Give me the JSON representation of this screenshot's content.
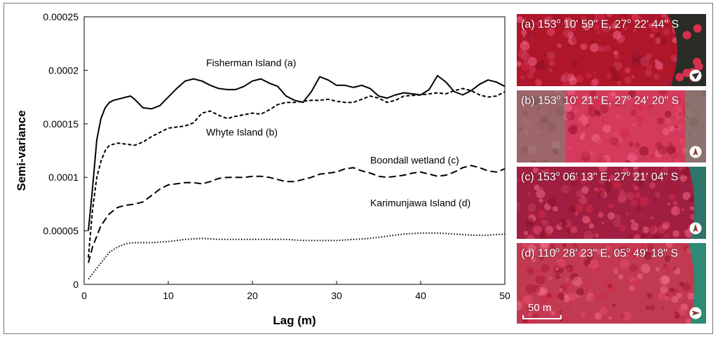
{
  "chart_data": {
    "type": "line",
    "xlabel": "Lag (m)",
    "ylabel": "Semi-variance",
    "xlim": [
      0,
      50
    ],
    "ylim": [
      0,
      0.00025
    ],
    "xticks": [
      "0",
      "10",
      "20",
      "30",
      "40",
      "50"
    ],
    "yticks": [
      "0",
      "0.00005",
      "0.0001",
      "0.00015",
      "0.0002",
      "0.00025"
    ],
    "series": [
      {
        "name": "Fisherman Island (a)",
        "style": "solid",
        "x": [
          0.5,
          1,
          1.5,
          2,
          2.5,
          3,
          3.5,
          4,
          5,
          5.5,
          6,
          7,
          8,
          9,
          10,
          11,
          12,
          13,
          14,
          15,
          16,
          17,
          18,
          19,
          20,
          21,
          22,
          23,
          24,
          25,
          26,
          27,
          28,
          29,
          30,
          31,
          32,
          33,
          34,
          35,
          36,
          37,
          38,
          39,
          40,
          41,
          42,
          43,
          44,
          45,
          46,
          47,
          48,
          49,
          50
        ],
        "y": [
          5e-05,
          9e-05,
          0.000135,
          0.000155,
          0.000165,
          0.00017,
          0.000172,
          0.000173,
          0.000175,
          0.000176,
          0.000173,
          0.000165,
          0.000164,
          0.000167,
          0.000175,
          0.000183,
          0.00019,
          0.000192,
          0.00019,
          0.000186,
          0.000183,
          0.000182,
          0.000182,
          0.000185,
          0.00019,
          0.000192,
          0.000188,
          0.000185,
          0.000176,
          0.000172,
          0.00017,
          0.00018,
          0.000194,
          0.000191,
          0.000186,
          0.000186,
          0.000184,
          0.000186,
          0.000183,
          0.000176,
          0.000174,
          0.000177,
          0.000179,
          0.000178,
          0.000177,
          0.000182,
          0.000195,
          0.000189,
          0.00018,
          0.000177,
          0.000181,
          0.000187,
          0.000191,
          0.000189,
          0.000185
        ]
      },
      {
        "name": "Whyte Island (b)",
        "style": "dashed",
        "x": [
          0.5,
          1,
          1.5,
          2,
          2.5,
          3,
          4,
          5,
          6,
          7,
          8,
          10,
          12,
          13,
          14,
          15,
          16,
          17,
          18,
          20,
          21,
          22,
          23,
          24,
          25,
          26,
          27,
          28,
          29,
          30,
          31,
          32,
          33,
          34,
          35,
          36,
          37,
          38,
          40,
          41,
          42,
          43,
          44,
          45,
          46,
          47,
          48,
          49,
          50
        ],
        "y": [
          2.5e-05,
          7e-05,
          0.0001,
          0.000115,
          0.000125,
          0.00013,
          0.000132,
          0.000131,
          0.00013,
          0.000133,
          0.000138,
          0.000146,
          0.000148,
          0.000151,
          0.00016,
          0.000162,
          0.000158,
          0.000155,
          0.000157,
          0.00016,
          0.000159,
          0.000163,
          0.000168,
          0.00017,
          0.00017,
          0.000171,
          0.000172,
          0.000172,
          0.000173,
          0.000171,
          0.00017,
          0.00017,
          0.000173,
          0.000176,
          0.000174,
          0.00017,
          0.000172,
          0.000176,
          0.000177,
          0.000178,
          0.000179,
          0.000178,
          0.000181,
          0.000183,
          0.000181,
          0.000177,
          0.000175,
          0.000176,
          0.00018
        ]
      },
      {
        "name": "Boondall wetland (c)",
        "style": "long-dashed",
        "x": [
          0.5,
          1,
          2,
          3,
          4,
          5,
          6,
          7,
          8,
          9,
          10,
          11,
          12,
          13,
          14,
          15,
          16,
          17,
          18,
          19,
          20,
          21,
          22,
          23,
          24,
          25,
          26,
          27,
          28,
          29,
          30,
          31,
          32,
          33,
          34,
          35,
          36,
          37,
          38,
          39,
          40,
          41,
          42,
          43,
          44,
          45,
          46,
          47,
          48,
          49,
          50
        ],
        "y": [
          2e-05,
          3.5e-05,
          5.5e-05,
          6.6e-05,
          7.2e-05,
          7.4e-05,
          7.5e-05,
          7.7e-05,
          8.3e-05,
          8.9e-05,
          9.3e-05,
          9.4e-05,
          9.5e-05,
          9.5e-05,
          9.4e-05,
          9.6e-05,
          9.9e-05,
          0.0001,
          0.0001,
          0.0001,
          0.000101,
          0.000101,
          0.0001,
          9.8e-05,
          9.6e-05,
          9.6e-05,
          9.8e-05,
          0.0001,
          0.000103,
          0.000104,
          0.000105,
          0.000108,
          0.000109,
          0.000106,
          0.000104,
          0.000101,
          0.0001,
          0.000101,
          0.000102,
          0.000104,
          0.000105,
          0.000103,
          0.000101,
          0.000102,
          0.000105,
          0.000109,
          0.000111,
          0.000109,
          0.000106,
          0.000105,
          0.000108
        ]
      },
      {
        "name": "Karimunjawa Island (d)",
        "style": "dotted",
        "x": [
          0.5,
          1,
          2,
          3,
          4,
          5,
          6,
          8,
          10,
          12,
          14,
          16,
          18,
          20,
          22,
          24,
          26,
          28,
          30,
          32,
          34,
          36,
          38,
          40,
          42,
          44,
          46,
          48,
          50
        ],
        "y": [
          5e-06,
          1e-05,
          2e-05,
          3e-05,
          3.5e-05,
          3.8e-05,
          3.9e-05,
          3.9e-05,
          4e-05,
          4.2e-05,
          4.3e-05,
          4.2e-05,
          4.2e-05,
          4.2e-05,
          4.2e-05,
          4.2e-05,
          4.1e-05,
          4.1e-05,
          4.1e-05,
          4.2e-05,
          4.3e-05,
          4.5e-05,
          4.7e-05,
          4.8e-05,
          4.8e-05,
          4.7e-05,
          4.6e-05,
          4.6e-05,
          4.7e-05
        ]
      }
    ],
    "annotations": [
      {
        "text": "Fisherman Island (a)",
        "x": 14.5,
        "y": 0.000204
      },
      {
        "text": "Whyte Island (b)",
        "x": 14.5,
        "y": 0.000139
      },
      {
        "text": "Boondall wetland (c)",
        "x": 34,
        "y": 0.000113
      },
      {
        "text": "Karimunjawa Island (d)",
        "x": 34,
        "y": 7.3e-05
      }
    ]
  },
  "panels": [
    {
      "id": "a",
      "letter": "(a)",
      "lon_deg": "153",
      "lon_rest": " 10' 59\" E, ",
      "lat_deg": "27",
      "lat_rest": " 22' 44\" S",
      "base_color": "#b0162a",
      "edge_color": "#2a2d26"
    },
    {
      "id": "b",
      "letter": "(b)",
      "lon_deg": "153",
      "lon_rest": " 10' 21\" E, ",
      "lat_deg": "27",
      "lat_rest": " 24' 20\" S",
      "base_color": "#d43a5c",
      "edge_color": "#6e8a76"
    },
    {
      "id": "c",
      "letter": "(c)",
      "lon_deg": "153",
      "lon_rest": " 06' 13\" E, ",
      "lat_deg": "27",
      "lat_rest": " 21' 04\" S",
      "base_color": "#a01e42",
      "edge_color": "#2f7468"
    },
    {
      "id": "d",
      "letter": "(d)",
      "lon_deg": "110",
      "lon_rest": " 28' 23\" E, ",
      "lat_deg": "05",
      "lat_rest": " 49' 18\" S",
      "base_color": "#c23a52",
      "edge_color": "#2e8a74"
    }
  ],
  "scalebar": {
    "label": "50 m"
  },
  "icons": {
    "north_arrow": "north-arrow-icon"
  }
}
